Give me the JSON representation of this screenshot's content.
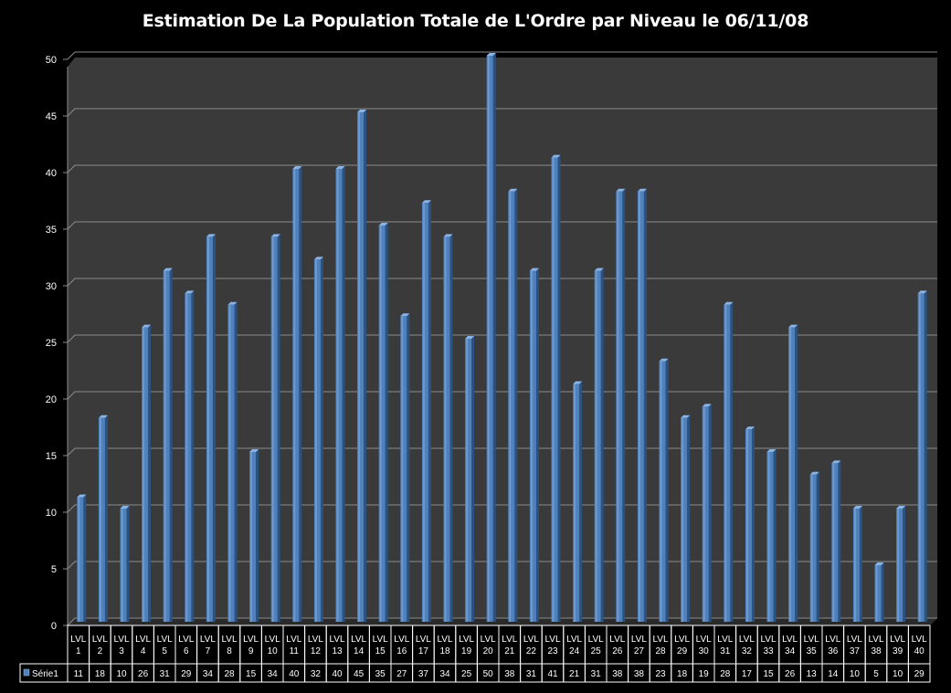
{
  "chart_data": {
    "type": "bar",
    "title": "Estimation De La Population Totale de L'Ordre par Niveau le 06/11/08",
    "xlabel": "",
    "ylabel": "",
    "ylim": [
      0,
      50
    ],
    "yticks": [
      0,
      5,
      10,
      15,
      20,
      25,
      30,
      35,
      40,
      45,
      50
    ],
    "grid": true,
    "categories": [
      "LVL 1",
      "LVL 2",
      "LVL 3",
      "LVL 4",
      "LVL 5",
      "LVL 6",
      "LVL 7",
      "LVL 8",
      "LVL 9",
      "LVL 10",
      "LVL 11",
      "LVL 12",
      "LVL 13",
      "LVL 14",
      "LVL 15",
      "LVL 16",
      "LVL 17",
      "LVL 18",
      "LVL 19",
      "LVL 20",
      "LVL 21",
      "LVL 22",
      "LVL 23",
      "LVL 24",
      "LVL 25",
      "LVL 26",
      "LVL 27",
      "LVL 28",
      "LVL 29",
      "LVL 30",
      "LVL 31",
      "LVL 32",
      "LVL 33",
      "LVL 34",
      "LVL 35",
      "LVL 36",
      "LVL 37",
      "LVL 38",
      "LVL 39",
      "LVL 40"
    ],
    "series": [
      {
        "name": "Série1",
        "values": [
          11,
          18,
          10,
          26,
          31,
          29,
          34,
          28,
          15,
          34,
          40,
          32,
          40,
          45,
          35,
          27,
          37,
          34,
          25,
          50,
          38,
          31,
          41,
          21,
          31,
          38,
          38,
          23,
          18,
          19,
          28,
          17,
          15,
          26,
          13,
          14,
          10,
          5,
          10,
          29
        ]
      }
    ],
    "legend": "data-table",
    "colors": {
      "bar": "#4f81bd",
      "bar_light": "#8db3e2",
      "bar_dark": "#2c5282",
      "plot_background": "#3a3a3a",
      "gridline": "#8c8c8c",
      "page_background": "#000000",
      "text": "#ffffff"
    }
  }
}
